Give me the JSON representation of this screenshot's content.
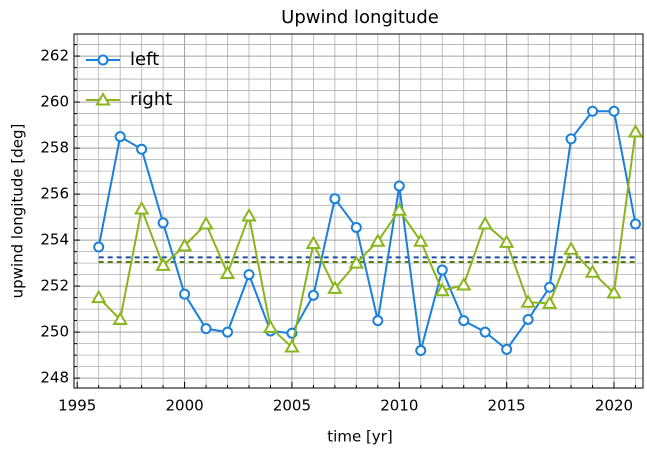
{
  "chart_data": {
    "type": "line",
    "title": "Upwind longitude",
    "x_label": "time [yr]",
    "y_label": "upwind longitude [deg]",
    "x": [
      1996,
      1997,
      1998,
      1999,
      2000,
      2001,
      2002,
      2003,
      2004,
      2005,
      2006,
      2007,
      2008,
      2009,
      2010,
      2011,
      2012,
      2013,
      2014,
      2015,
      2016,
      2017,
      2018,
      2019,
      2020,
      2021
    ],
    "series": [
      {
        "name": "left",
        "color": "#1a80d9",
        "marker": "circle",
        "mean": 253.25,
        "values": [
          253.7,
          258.5,
          257.95,
          254.75,
          251.65,
          250.15,
          250.0,
          252.5,
          250.05,
          249.95,
          251.6,
          255.8,
          254.55,
          250.5,
          256.35,
          249.2,
          252.7,
          250.5,
          250.0,
          249.25,
          250.55,
          251.95,
          258.4,
          259.6,
          259.6,
          254.7
        ]
      },
      {
        "name": "right",
        "color": "#8ab51c",
        "marker": "triangle",
        "mean": 253.05,
        "values": [
          251.5,
          250.55,
          255.35,
          252.9,
          253.75,
          254.7,
          252.55,
          255.05,
          250.2,
          249.35,
          253.85,
          251.9,
          253.0,
          253.95,
          255.3,
          253.95,
          251.8,
          252.05,
          254.7,
          253.9,
          251.3,
          251.25,
          253.6,
          252.6,
          251.7,
          258.7
        ]
      }
    ],
    "xlim": [
      1994.85,
      2021.35
    ],
    "ylim": [
      247.57,
      262.96
    ],
    "xticks": [
      1995,
      2000,
      2005,
      2010,
      2015,
      2020
    ],
    "yticks": [
      248,
      250,
      252,
      254,
      256,
      258,
      260,
      262
    ],
    "xminorticks": [
      1996,
      1997,
      1998,
      1999,
      2001,
      2002,
      2003,
      2004,
      2006,
      2007,
      2008,
      2009,
      2011,
      2012,
      2013,
      2014,
      2016,
      2017,
      2018,
      2019,
      2021
    ],
    "yminorticks": [
      248.5,
      249,
      249.5,
      250.5,
      251,
      251.5,
      252.5,
      253,
      253.5,
      254.5,
      255,
      255.5,
      256.5,
      257,
      257.5,
      258.5,
      259,
      259.5,
      260.5,
      261,
      261.5,
      262.5
    ],
    "grid": true,
    "legend": "upper left"
  }
}
